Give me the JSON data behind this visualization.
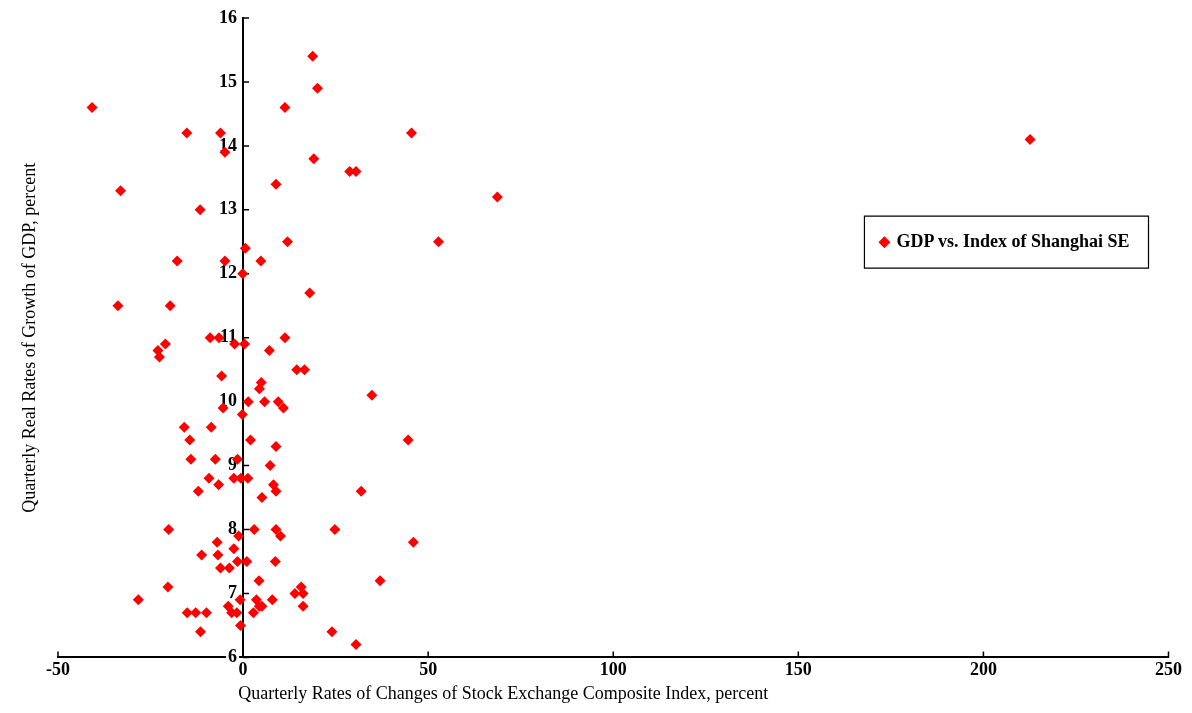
{
  "chart_data": {
    "type": "scatter",
    "xlabel": "Quarterly Rates of Changes of Stock Exchange Composite Index, percent",
    "ylabel": "Quarterly Real Rates of Growth of GDP, percent",
    "xlim": [
      -50,
      250
    ],
    "xticks": [
      -50,
      0,
      50,
      100,
      150,
      200,
      250
    ],
    "ylim": [
      6,
      16
    ],
    "yticks": [
      6,
      7,
      8,
      9,
      10,
      11,
      12,
      13,
      14,
      15,
      16
    ],
    "grid": false,
    "legend": "right",
    "marker": "diamond",
    "series": [
      {
        "name": "GDP vs. Index of Shanghai SE",
        "color": "#ff0000",
        "x": [
          -40.8,
          -15.2,
          -6.1,
          -4.9,
          -33.1,
          -11.6,
          -17.8,
          -4.9,
          -33.8,
          -19.7,
          -21,
          -23,
          -22.6,
          -8.9,
          -6.5,
          -2.3,
          0.4,
          -5.8,
          -5.4,
          -15.9,
          -8.6,
          -14.4,
          -14.1,
          -7.5,
          -1.5,
          -9.2,
          -6.6,
          -12.1,
          -2.5,
          -0.6,
          1.3,
          -20.1,
          -7,
          -11.2,
          -6.8,
          -6.1,
          -3.7,
          -1.5,
          -2.5,
          -1.2,
          1,
          8.7,
          -20.3,
          -28.3,
          -15.1,
          -12.8,
          -9.9,
          -11.5,
          -4,
          -3.1,
          -1.7,
          -0.8,
          -0.7,
          2.8,
          3.6,
          4.4,
          5.1,
          7.9,
          24,
          30.5,
          14,
          15.7,
          16.2,
          16.2,
          4.3,
          37,
          3,
          8.9,
          10.1,
          24.8,
          46,
          8.2,
          8.9,
          5.1,
          31.9,
          7.3,
          2,
          8.9,
          44.6,
          -0.2,
          1.4,
          5.8,
          9.5,
          10.9,
          34.8,
          4.9,
          4.4,
          14.5,
          16.6,
          7.1,
          11.3,
          18,
          -0.1,
          4.8,
          0.6,
          12,
          52.8,
          68.7,
          8.9,
          28.8,
          30.5,
          19.1,
          45.5,
          11.3,
          20.1,
          18.8,
          212.6
        ],
        "values": [
          14.6,
          14.2,
          14.2,
          13.9,
          13.3,
          13.0,
          12.2,
          12.2,
          11.5,
          11.5,
          10.9,
          10.8,
          10.7,
          11.0,
          11.0,
          10.9,
          10.9,
          10.4,
          9.9,
          9.6,
          9.6,
          9.4,
          9.1,
          9.1,
          9.1,
          8.8,
          8.7,
          8.6,
          8.8,
          8.8,
          8.8,
          8.0,
          7.8,
          7.6,
          7.6,
          7.4,
          7.4,
          7.5,
          7.7,
          7.9,
          7.5,
          7.5,
          7.1,
          6.9,
          6.7,
          6.7,
          6.7,
          6.4,
          6.8,
          6.7,
          6.7,
          6.9,
          6.5,
          6.7,
          6.9,
          6.8,
          6.8,
          6.9,
          6.4,
          6.2,
          7.0,
          7.1,
          7.0,
          6.8,
          7.2,
          7.2,
          8.0,
          8.0,
          7.9,
          8.0,
          7.8,
          8.7,
          8.6,
          8.5,
          8.6,
          9.0,
          9.4,
          9.3,
          9.4,
          9.8,
          10.0,
          10.0,
          10.0,
          9.9,
          10.1,
          10.3,
          10.2,
          10.5,
          10.5,
          10.8,
          11.0,
          11.7,
          12.0,
          12.2,
          12.4,
          12.5,
          12.5,
          13.2,
          13.4,
          13.6,
          13.6,
          13.8,
          14.2,
          14.6,
          14.9,
          15.4,
          14.1
        ]
      }
    ]
  }
}
